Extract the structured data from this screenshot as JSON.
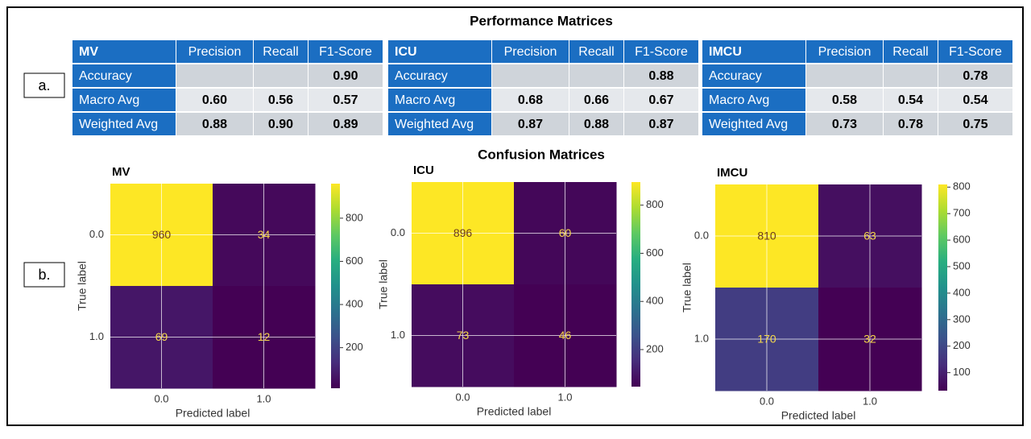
{
  "title": "Performance Matrices",
  "label_a": "a.",
  "label_b": "b.",
  "tables": [
    {
      "header": [
        "MV",
        "Precision",
        "Recall",
        "F1-Score"
      ],
      "rows": [
        [
          "Accuracy",
          null,
          null,
          "0.90"
        ],
        [
          "Macro Avg",
          "0.60",
          "0.56",
          "0.57"
        ],
        [
          "Weighted Avg",
          "0.88",
          "0.90",
          "0.89"
        ]
      ]
    },
    {
      "header": [
        "ICU",
        "Precision",
        "Recall",
        "F1-Score"
      ],
      "rows": [
        [
          "Accuracy",
          null,
          null,
          "0.88"
        ],
        [
          "Macro Avg",
          "0.68",
          "0.66",
          "0.67"
        ],
        [
          "Weighted Avg",
          "0.87",
          "0.88",
          "0.87"
        ]
      ]
    },
    {
      "header": [
        "IMCU",
        "Precision",
        "Recall",
        "F1-Score"
      ],
      "rows": [
        [
          "Accuracy",
          null,
          null,
          "0.78"
        ],
        [
          "Macro Avg",
          "0.58",
          "0.54",
          "0.54"
        ],
        [
          "Weighted Avg",
          "0.73",
          "0.78",
          "0.75"
        ]
      ]
    }
  ],
  "subtitle": "Confusion Matrices",
  "chart_data": [
    {
      "type": "heatmap",
      "title": "MV",
      "x": [
        "0.0",
        "1.0"
      ],
      "y": [
        "0.0",
        "1.0"
      ],
      "values": [
        [
          960,
          34
        ],
        [
          69,
          12
        ]
      ],
      "xlabel": "Predicted label",
      "ylabel": "True label",
      "colormap": "viridis",
      "zlim": [
        12,
        960
      ],
      "zticks": [
        200,
        400,
        600,
        800
      ]
    },
    {
      "type": "heatmap",
      "title": "ICU",
      "x": [
        "0.0",
        "1.0"
      ],
      "y": [
        "0.0",
        "1.0"
      ],
      "values": [
        [
          896,
          60
        ],
        [
          73,
          46
        ]
      ],
      "xlabel": "Predicted label",
      "ylabel": "True label",
      "colormap": "viridis",
      "zlim": [
        46,
        896
      ],
      "zticks": [
        200,
        400,
        600,
        800
      ]
    },
    {
      "type": "heatmap",
      "title": "IMCU",
      "x": [
        "0.0",
        "1.0"
      ],
      "y": [
        "0.0",
        "1.0"
      ],
      "values": [
        [
          810,
          63
        ],
        [
          170,
          32
        ]
      ],
      "xlabel": "Predicted label",
      "ylabel": "True label",
      "colormap": "viridis",
      "zlim": [
        32,
        810
      ],
      "zticks": [
        100,
        200,
        300,
        400,
        500,
        600,
        700,
        800
      ]
    }
  ]
}
